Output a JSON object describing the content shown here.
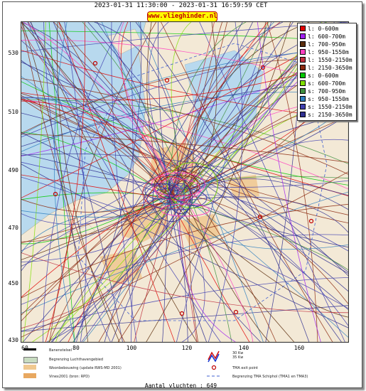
{
  "header": {
    "title": "2023-01-31 11:30:00 - 2023-01-31 16:59:59 CET",
    "site": "www.vlieghinder.nl"
  },
  "map": {
    "y_ticks": [
      "530",
      "510",
      "490",
      "470",
      "450",
      "430"
    ],
    "x_ticks": [
      "60",
      "80",
      "100",
      "120",
      "140",
      "160"
    ],
    "colors": {
      "sea": "#b8d9ee",
      "land": "#f3e9d6",
      "urban": "#f0c890",
      "airport": "#c8dcc0"
    }
  },
  "legend": {
    "items": [
      {
        "label": "l: 0-600m",
        "color": "#e00000"
      },
      {
        "label": "l: 600-700m",
        "color": "#a020f0"
      },
      {
        "label": "l: 700-950m",
        "color": "#5a2d0c"
      },
      {
        "label": "l: 950-1550m",
        "color": "#ff40c0"
      },
      {
        "label": "l: 1550-2150m",
        "color": "#c03040"
      },
      {
        "label": "l: 2150-3650m",
        "color": "#8b2a10"
      },
      {
        "label": "s: 0-600m",
        "color": "#00c800"
      },
      {
        "label": "s: 600-700m",
        "color": "#80e000"
      },
      {
        "label": "s: 700-950m",
        "color": "#409040"
      },
      {
        "label": "s: 950-1550m",
        "color": "#3080c0"
      },
      {
        "label": "s: 1550-2150m",
        "color": "#4040b0"
      },
      {
        "label": "s: 2150-3650m",
        "color": "#303090"
      }
    ]
  },
  "bottom_legend": {
    "runway": "Banenstelsel",
    "airport_boundary": "Begrenzing Luchthavengebied",
    "housing": "Woonbebouwing (update RWS-MD 2001)",
    "vinex": "Vinex2001 (bron: RPD)",
    "nav_small_1": "30 Kw",
    "nav_small_2": "35 Kw",
    "tma_exit": "TMA exit point",
    "tma_boundary": "Begrenzing TMA Schiphol  (TMA1 en TMA3)"
  },
  "footer": {
    "count": "Aantal vluchten : 649"
  }
}
